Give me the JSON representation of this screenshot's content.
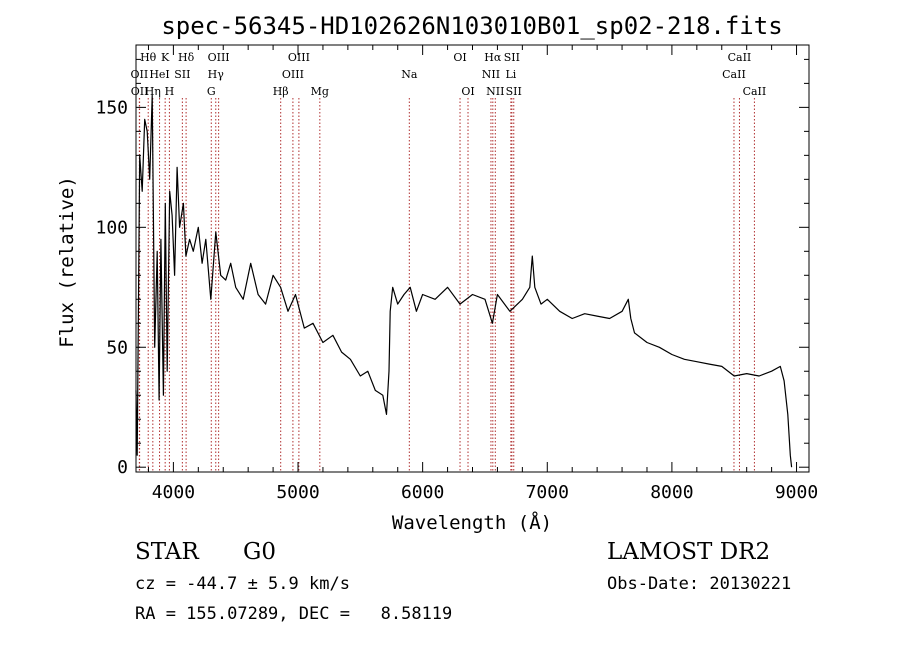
{
  "chart_data": {
    "type": "line",
    "title": "spec-56345-HD102626N103010B01_sp02-218.fits",
    "xlabel": "Wavelength (Å)",
    "ylabel": "Flux (relative)",
    "xlim": [
      3700,
      9100
    ],
    "ylim": [
      -2,
      176
    ],
    "x_ticks": [
      4000,
      5000,
      6000,
      7000,
      8000,
      9000
    ],
    "x_tick_labels": [
      "4000",
      "5000",
      "6000",
      "7000",
      "8000",
      "9000"
    ],
    "y_ticks": [
      0,
      50,
      100,
      150
    ],
    "y_tick_labels": [
      "0",
      "50",
      "100",
      "150"
    ],
    "grid": false,
    "legend": "none",
    "line_color": "#000000",
    "marker_color": "#b03030",
    "series": [
      {
        "x": [
          3700,
          3710,
          3730,
          3750,
          3770,
          3790,
          3810,
          3830,
          3850,
          3870,
          3885,
          3900,
          3920,
          3935,
          3950,
          3970,
          3990,
          4010,
          4030,
          4050,
          4080,
          4100,
          4130,
          4160,
          4200,
          4230,
          4260,
          4300,
          4340,
          4380,
          4420,
          4460,
          4500,
          4560,
          4620,
          4680,
          4740,
          4800,
          4860,
          4920,
          4980,
          5050,
          5120,
          5200,
          5280,
          5350,
          5420,
          5500,
          5560,
          5620,
          5680,
          5710,
          5730,
          5740,
          5760,
          5800,
          5850,
          5900,
          5950,
          6000,
          6100,
          6200,
          6300,
          6400,
          6500,
          6560,
          6600,
          6700,
          6800,
          6860,
          6880,
          6900,
          6950,
          7000,
          7100,
          7200,
          7300,
          7400,
          7500,
          7600,
          7650,
          7670,
          7700,
          7800,
          7900,
          8000,
          8100,
          8200,
          8300,
          8400,
          8500,
          8600,
          8700,
          8800,
          8870,
          8900,
          8930,
          8950,
          8960
        ],
        "y": [
          32,
          5,
          130,
          115,
          145,
          140,
          120,
          155,
          50,
          90,
          28,
          95,
          30,
          110,
          40,
          115,
          105,
          80,
          125,
          100,
          110,
          88,
          95,
          90,
          100,
          85,
          95,
          70,
          98,
          80,
          78,
          85,
          75,
          70,
          85,
          72,
          68,
          80,
          75,
          65,
          72,
          58,
          60,
          52,
          55,
          48,
          45,
          38,
          40,
          32,
          30,
          22,
          40,
          65,
          75,
          68,
          72,
          75,
          65,
          72,
          70,
          75,
          68,
          72,
          70,
          60,
          72,
          65,
          70,
          75,
          88,
          75,
          68,
          70,
          65,
          62,
          64,
          63,
          62,
          65,
          70,
          62,
          56,
          52,
          50,
          47,
          45,
          44,
          43,
          42,
          38,
          39,
          38,
          40,
          42,
          36,
          22,
          5,
          0
        ]
      }
    ],
    "line_markers": [
      {
        "label": "Hθ",
        "x": 3798,
        "row": 0
      },
      {
        "label": "OII",
        "x": 3727,
        "row": 1
      },
      {
        "label": "OII",
        "x": 3729,
        "row": 2
      },
      {
        "label": "Hη",
        "x": 3835,
        "row": 2
      },
      {
        "label": "HeI",
        "x": 3889,
        "row": 1
      },
      {
        "label": "K",
        "x": 3934,
        "row": 0
      },
      {
        "label": "H",
        "x": 3968,
        "row": 2
      },
      {
        "label": "SII",
        "x": 4072,
        "row": 1
      },
      {
        "label": "Hδ",
        "x": 4102,
        "row": 0
      },
      {
        "label": "OIII",
        "x": 4363,
        "row": 0
      },
      {
        "label": "Hγ",
        "x": 4340,
        "row": 1
      },
      {
        "label": "G",
        "x": 4304,
        "row": 2
      },
      {
        "label": "Hβ",
        "x": 4861,
        "row": 2
      },
      {
        "label": "OIII",
        "x": 5007,
        "row": 0
      },
      {
        "label": "OIII",
        "x": 4959,
        "row": 1
      },
      {
        "label": "Mg",
        "x": 5175,
        "row": 2
      },
      {
        "label": "Na",
        "x": 5893,
        "row": 1
      },
      {
        "label": "OI",
        "x": 6300,
        "row": 0
      },
      {
        "label": "OI",
        "x": 6364,
        "row": 2
      },
      {
        "label": "Hα",
        "x": 6563,
        "row": 0
      },
      {
        "label": "SII",
        "x": 6716,
        "row": 0
      },
      {
        "label": "NII",
        "x": 6548,
        "row": 1
      },
      {
        "label": "Li",
        "x": 6708,
        "row": 1
      },
      {
        "label": "NII",
        "x": 6583,
        "row": 2
      },
      {
        "label": "SII",
        "x": 6731,
        "row": 2
      },
      {
        "label": "CaII",
        "x": 8542,
        "row": 0
      },
      {
        "label": "CaII",
        "x": 8498,
        "row": 1
      },
      {
        "label": "CaII",
        "x": 8662,
        "row": 2
      }
    ]
  },
  "footer": {
    "class_label": "STAR",
    "subclass": "G0",
    "survey": "LAMOST DR2",
    "redshift_text": "cz = -44.7 ± 5.9 km/s",
    "obs_date_text": "Obs-Date: 20130221",
    "coords_text": "RA = 155.07289, DEC =   8.58119"
  }
}
